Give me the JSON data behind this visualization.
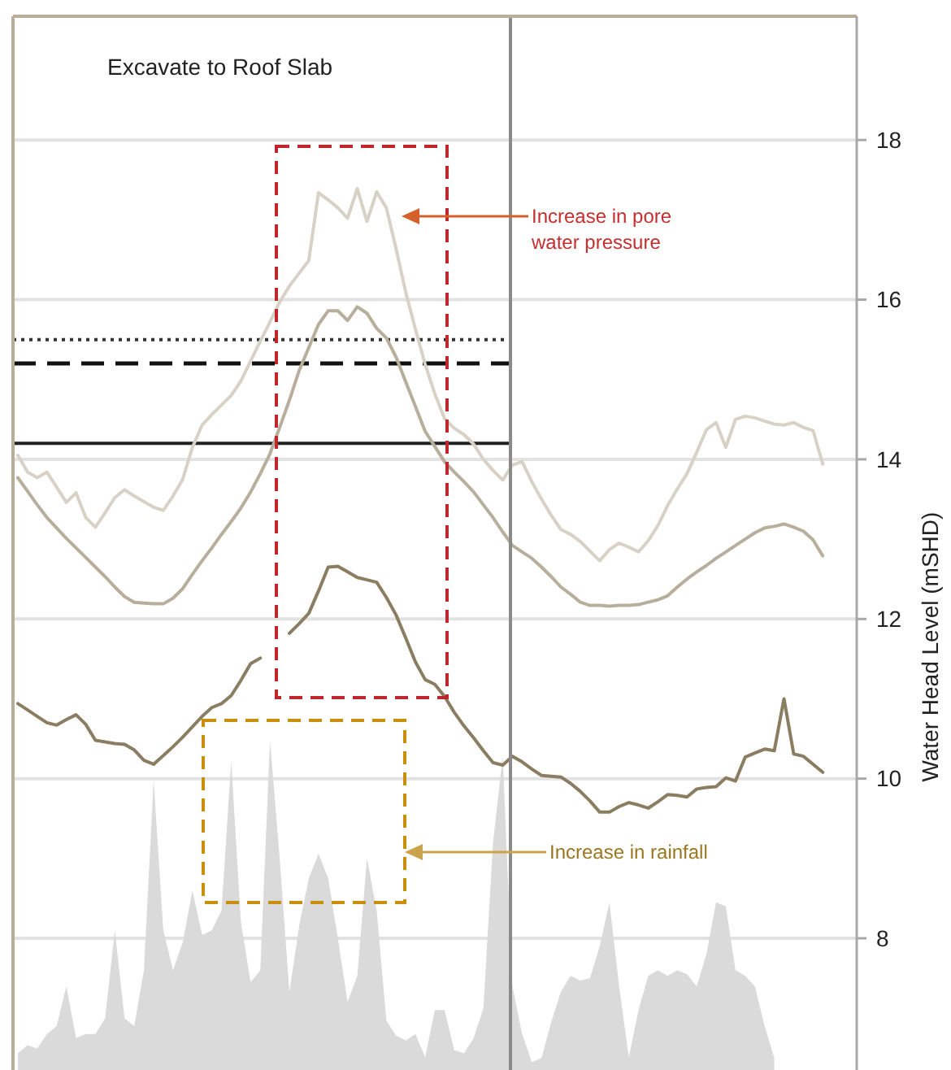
{
  "chart_data": {
    "type": "line",
    "ylabel": "Water Head Level (mSHD)",
    "categories": [
      null,
      null,
      null,
      null,
      null,
      null,
      null,
      null,
      null,
      null,
      null,
      null,
      null,
      null,
      null,
      null,
      null,
      null,
      null,
      null,
      null,
      null,
      null,
      null,
      null,
      null,
      null,
      null,
      null,
      null,
      null,
      null,
      null,
      null,
      null,
      null,
      null,
      null,
      null,
      null,
      null,
      null,
      null,
      null,
      null,
      null,
      null,
      null,
      null,
      null,
      null,
      null,
      null,
      null,
      null,
      null,
      null,
      null,
      null,
      null,
      null,
      null,
      null,
      null,
      null,
      null,
      null,
      null,
      null,
      null,
      null,
      null,
      null,
      null,
      null,
      null,
      null,
      null,
      null,
      null,
      null,
      null,
      null,
      null,
      null,
      null,
      null
    ],
    "ylim": [
      6.35,
      19.55
    ],
    "yticks": [
      8,
      10,
      12,
      14,
      16,
      18
    ],
    "grid": "y",
    "tick_labels": "y",
    "series": [
      {
        "type": "area",
        "color": "#dadada",
        "values": [
          6.56,
          6.66,
          6.62,
          6.8,
          6.9,
          7.4,
          6.75,
          6.8,
          6.8,
          7.0,
          8.1,
          7.0,
          6.9,
          7.6,
          9.98,
          8.1,
          7.6,
          7.95,
          8.6,
          8.04,
          8.1,
          8.35,
          10.22,
          8.2,
          7.45,
          7.6,
          10.48,
          9.0,
          7.33,
          8.15,
          8.75,
          9.06,
          8.75,
          8.0,
          7.2,
          7.53,
          9.0,
          8.35,
          6.97,
          6.78,
          6.72,
          6.8,
          6.51,
          7.1,
          7.1,
          6.6,
          6.56,
          6.75,
          7.12,
          9.2,
          10.28,
          7.4,
          6.8,
          6.45,
          6.5,
          6.95,
          7.33,
          7.53,
          7.47,
          7.5,
          7.9,
          8.45,
          7.4,
          6.51,
          7.1,
          7.53,
          7.6,
          7.53,
          7.6,
          7.55,
          7.4,
          7.8,
          8.45,
          8.4,
          7.6,
          7.53,
          7.4,
          6.9,
          6.5,
          null,
          null,
          null,
          null,
          null,
          null,
          null,
          null
        ]
      },
      {
        "color": "#d8d2c6",
        "values": [
          14.05,
          13.84,
          13.77,
          13.84,
          13.65,
          13.46,
          13.58,
          13.27,
          13.15,
          13.33,
          13.52,
          13.62,
          13.54,
          13.47,
          13.4,
          13.36,
          13.54,
          13.75,
          14.15,
          14.43,
          14.56,
          14.68,
          14.8,
          14.98,
          15.23,
          15.48,
          15.72,
          15.97,
          16.17,
          16.33,
          16.49,
          17.34,
          17.25,
          17.15,
          17.02,
          17.39,
          16.98,
          17.35,
          17.15,
          16.64,
          16.09,
          15.63,
          15.19,
          14.82,
          14.51,
          14.39,
          14.31,
          14.19,
          14.0,
          13.86,
          13.74,
          13.93,
          13.97,
          13.72,
          13.5,
          13.3,
          13.12,
          13.06,
          12.97,
          12.85,
          12.73,
          12.87,
          12.95,
          12.9,
          12.84,
          12.98,
          13.17,
          13.42,
          13.63,
          13.82,
          14.09,
          14.37,
          14.46,
          14.15,
          14.5,
          14.54,
          14.52,
          14.48,
          14.44,
          14.43,
          14.46,
          14.4,
          14.36,
          13.94,
          null,
          null,
          null
        ]
      },
      {
        "color": "#b7ae9c",
        "values": [
          13.77,
          13.6,
          13.43,
          13.27,
          13.14,
          13.01,
          12.89,
          12.77,
          12.65,
          12.53,
          12.4,
          12.28,
          12.21,
          12.2,
          12.19,
          12.19,
          12.26,
          12.38,
          12.56,
          12.73,
          12.89,
          13.06,
          13.22,
          13.39,
          13.59,
          13.82,
          14.07,
          14.4,
          14.74,
          15.11,
          15.4,
          15.69,
          15.86,
          15.86,
          15.74,
          15.91,
          15.83,
          15.64,
          15.52,
          15.28,
          14.97,
          14.66,
          14.35,
          14.16,
          13.97,
          13.84,
          13.72,
          13.59,
          13.43,
          13.27,
          13.09,
          12.92,
          12.84,
          12.76,
          12.65,
          12.53,
          12.4,
          12.31,
          12.21,
          12.17,
          12.17,
          12.16,
          12.17,
          12.17,
          12.18,
          12.21,
          12.24,
          12.29,
          12.4,
          12.5,
          12.59,
          12.67,
          12.76,
          12.84,
          12.92,
          13.0,
          13.08,
          13.14,
          13.16,
          13.19,
          13.15,
          13.1,
          12.99,
          12.79,
          null,
          null,
          null
        ]
      },
      {
        "color": "#8a7d62",
        "values": [
          10.94,
          10.86,
          10.78,
          10.7,
          10.67,
          10.74,
          10.8,
          10.68,
          10.48,
          10.46,
          10.44,
          10.43,
          10.36,
          10.23,
          10.18,
          10.29,
          10.4,
          10.52,
          10.65,
          10.78,
          10.89,
          10.94,
          11.04,
          11.23,
          11.44,
          11.51,
          null,
          null,
          11.82,
          11.94,
          12.07,
          12.35,
          12.65,
          12.66,
          12.59,
          12.52,
          12.49,
          12.46,
          12.27,
          12.05,
          11.76,
          11.46,
          11.24,
          11.18,
          11.03,
          10.83,
          10.66,
          10.51,
          10.35,
          10.2,
          10.17,
          10.28,
          10.21,
          10.12,
          10.04,
          10.03,
          10.02,
          9.94,
          9.84,
          9.72,
          9.58,
          9.58,
          9.65,
          9.7,
          9.67,
          9.63,
          9.71,
          9.8,
          9.79,
          9.77,
          9.87,
          9.89,
          9.9,
          10.01,
          9.97,
          10.27,
          10.32,
          10.37,
          10.35,
          11.0,
          10.31,
          10.28,
          10.18,
          10.08,
          null,
          null,
          null
        ]
      }
    ],
    "ref_lines": [
      {
        "axis": "y",
        "value": 15.5,
        "color": "#333333",
        "line_style": "dotted"
      },
      {
        "axis": "y",
        "value": 15.2,
        "color": "#111111",
        "line_style": "dashed"
      },
      {
        "axis": "y",
        "value": 14.2,
        "color": "#222222",
        "line_style": "solid"
      }
    ],
    "annotations": [
      "Excavate to Roof Slab",
      "Increase in pore water pressure",
      "Increase in rainfall"
    ]
  }
}
